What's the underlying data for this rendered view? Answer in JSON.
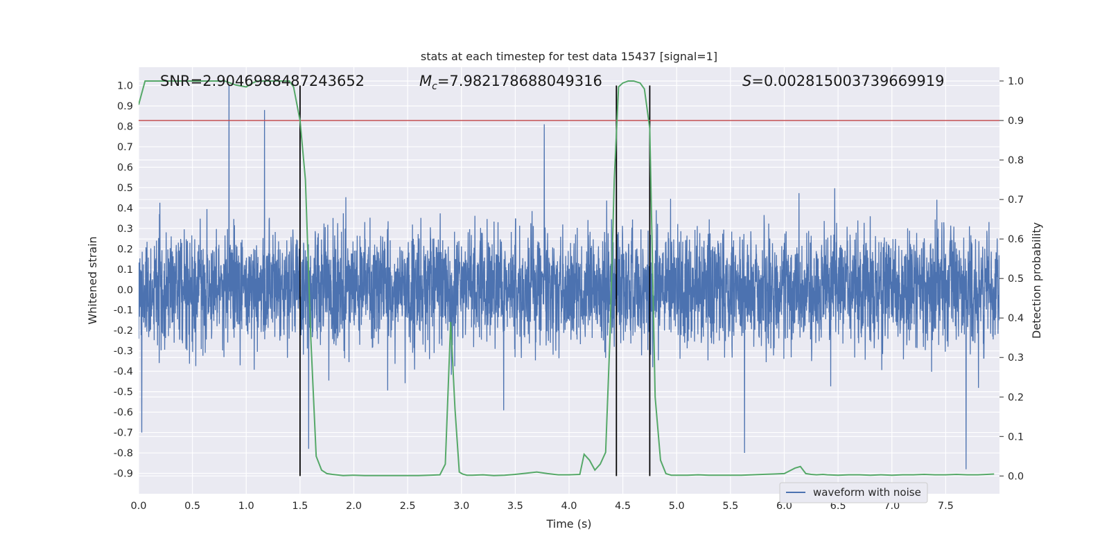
{
  "chart_data": {
    "type": "line",
    "title": "stats at each timestep for test data 15437 [signal=1]",
    "xlabel": "Time (s)",
    "ylabel_left": "Whitened strain",
    "ylabel_right": "Detection probability",
    "xlim": [
      0.0,
      8.0
    ],
    "ylim_left": [
      -1.0,
      1.09
    ],
    "ylim_right": [
      -0.045,
      1.035
    ],
    "xticks": [
      "0.0",
      "0.5",
      "1.0",
      "1.5",
      "2.0",
      "2.5",
      "3.0",
      "3.5",
      "4.0",
      "4.5",
      "5.0",
      "5.5",
      "6.0",
      "6.5",
      "7.0",
      "7.5"
    ],
    "yticks_left": [
      "-0.9",
      "-0.8",
      "-0.7",
      "-0.6",
      "-0.5",
      "-0.4",
      "-0.3",
      "-0.2",
      "-0.1",
      "0.0",
      "0.1",
      "0.2",
      "0.3",
      "0.4",
      "0.5",
      "0.6",
      "0.7",
      "0.8",
      "0.9",
      "1.0"
    ],
    "yticks_right": [
      "0.0",
      "0.1",
      "0.2",
      "0.3",
      "0.4",
      "0.5",
      "0.6",
      "0.7",
      "0.8",
      "0.9",
      "1.0"
    ],
    "grid": true,
    "legend_position": "bottom-right",
    "annotations": {
      "snr": {
        "label": "SNR",
        "value": "=2.9046988487243652"
      },
      "mc": {
        "label": "M",
        "sub": "c",
        "value": "=7.982178688049316"
      },
      "s": {
        "label": "S",
        "value": "=0.002815003739669919"
      }
    },
    "threshold": {
      "value": 0.9,
      "axis": "right",
      "color": "#c44e52"
    },
    "vertical_markers": [
      1.5,
      4.44,
      4.75
    ],
    "series": [
      {
        "name": "waveform with noise",
        "axis": "left",
        "color": "#4c72b0",
        "description_values": {
          "sample_rate_hz": 512,
          "noise_std": 0.14,
          "spikes": [
            [
              0.84,
              1.0
            ],
            [
              1.17,
              0.88
            ],
            [
              3.77,
              0.81
            ],
            [
              7.69,
              -0.88
            ],
            [
              0.03,
              -0.7
            ],
            [
              1.58,
              -0.78
            ],
            [
              5.63,
              -0.8
            ]
          ]
        }
      },
      {
        "name": "detection probability",
        "axis": "right",
        "color": "#55a868",
        "x": [
          0.0,
          0.06,
          0.1,
          0.2,
          0.3,
          0.4,
          0.5,
          0.6,
          0.7,
          0.8,
          0.9,
          1.0,
          1.06,
          1.1,
          1.2,
          1.3,
          1.4,
          1.44,
          1.5,
          1.55,
          1.6,
          1.65,
          1.7,
          1.75,
          1.8,
          1.9,
          2.0,
          2.1,
          2.2,
          2.3,
          2.4,
          2.5,
          2.6,
          2.7,
          2.8,
          2.85,
          2.9,
          2.94,
          2.98,
          3.01,
          3.05,
          3.1,
          3.2,
          3.3,
          3.4,
          3.5,
          3.6,
          3.7,
          3.8,
          3.9,
          4.0,
          4.1,
          4.14,
          4.19,
          4.24,
          4.29,
          4.34,
          4.38,
          4.42,
          4.46,
          4.5,
          4.55,
          4.6,
          4.66,
          4.7,
          4.75,
          4.8,
          4.85,
          4.9,
          4.95,
          5.0,
          5.1,
          5.2,
          5.3,
          5.4,
          5.5,
          5.6,
          5.7,
          5.8,
          5.9,
          6.0,
          6.1,
          6.15,
          6.2,
          6.25,
          6.3,
          6.36,
          6.4,
          6.5,
          6.6,
          6.7,
          6.8,
          6.9,
          7.0,
          7.1,
          7.15,
          7.2,
          7.3,
          7.4,
          7.5,
          7.6,
          7.7,
          7.8,
          7.95
        ],
        "y": [
          0.94,
          1.0,
          1.0,
          1.0,
          1.0,
          1.0,
          1.0,
          1.0,
          1.0,
          1.0,
          0.99,
          0.985,
          0.995,
          1.0,
          1.0,
          1.0,
          1.0,
          0.985,
          0.9,
          0.75,
          0.35,
          0.05,
          0.015,
          0.006,
          0.004,
          0.001,
          0.002,
          0.001,
          0.001,
          0.001,
          0.001,
          0.001,
          0.001,
          0.002,
          0.003,
          0.03,
          0.39,
          0.17,
          0.01,
          0.005,
          0.002,
          0.002,
          0.003,
          0.001,
          0.002,
          0.004,
          0.007,
          0.01,
          0.006,
          0.003,
          0.003,
          0.004,
          0.055,
          0.04,
          0.015,
          0.03,
          0.06,
          0.35,
          0.75,
          0.985,
          0.995,
          1.0,
          1.0,
          0.995,
          0.98,
          0.88,
          0.2,
          0.04,
          0.006,
          0.002,
          0.002,
          0.002,
          0.003,
          0.002,
          0.002,
          0.002,
          0.002,
          0.003,
          0.004,
          0.005,
          0.006,
          0.02,
          0.024,
          0.006,
          0.004,
          0.003,
          0.004,
          0.003,
          0.002,
          0.003,
          0.003,
          0.002,
          0.003,
          0.002,
          0.003,
          0.003,
          0.003,
          0.004,
          0.003,
          0.003,
          0.004,
          0.003,
          0.003,
          0.005
        ]
      }
    ]
  },
  "colors": {
    "plot_background": "#eaeaf2",
    "grid": "#ffffff",
    "waveform": "#4c72b0",
    "probability": "#55a868",
    "threshold": "#c44e52",
    "markers": "#000000"
  }
}
